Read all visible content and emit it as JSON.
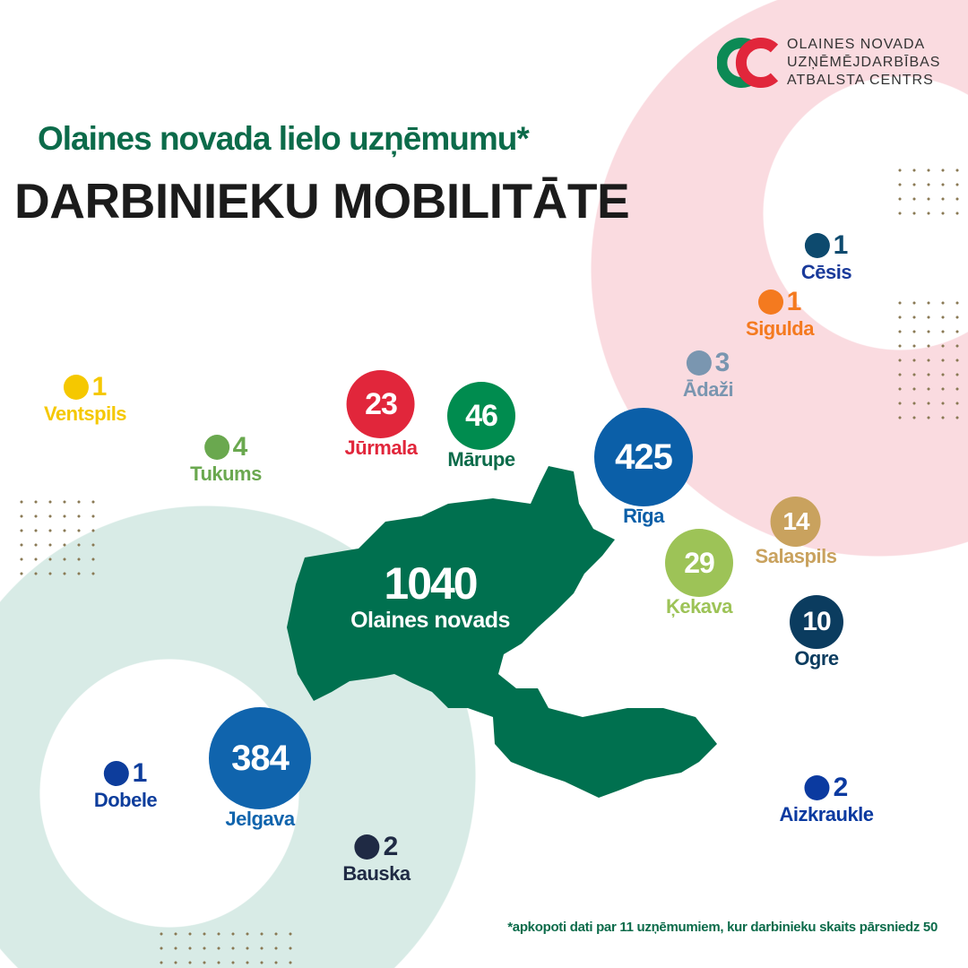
{
  "logo": {
    "lines": [
      "OLAINES NOVADA",
      "UZŅĒMĒJDARBĪBAS",
      "ATBALSTA CENTRS"
    ],
    "colors": {
      "green": "#0c8a55",
      "red": "#e1263b"
    }
  },
  "title": {
    "subtitle": "Olaines novada lielo uzņēmumu*",
    "main": "DARBINIEKU MOBILITĀTE"
  },
  "center": {
    "value": "1040",
    "name": "Olaines novads",
    "color": "#00704f"
  },
  "locations": [
    {
      "name": "Cēsis",
      "value": "1",
      "color": "#0d4a6e",
      "text": "#1a3a9a"
    },
    {
      "name": "Sigulda",
      "value": "1",
      "color": "#f47a1f",
      "text": "#f47a1f"
    },
    {
      "name": "Ādaži",
      "value": "3",
      "color": "#7a96b0",
      "text": "#7a96b0"
    },
    {
      "name": "Ventspils",
      "value": "1",
      "color": "#f5c800",
      "text": "#f5c800"
    },
    {
      "name": "Tukums",
      "value": "4",
      "color": "#6aa84f",
      "text": "#6aa84f"
    },
    {
      "name": "Jūrmala",
      "value": "23",
      "color": "#e1263b",
      "text": "#e1263b"
    },
    {
      "name": "Mārupe",
      "value": "46",
      "color": "#008c4f",
      "text": "#0c6b4a"
    },
    {
      "name": "Rīga",
      "value": "425",
      "color": "#0b5fa8",
      "text": "#0b5fa8"
    },
    {
      "name": "Salaspils",
      "value": "14",
      "color": "#c9a25e",
      "text": "#c9a25e"
    },
    {
      "name": "Ķekava",
      "value": "29",
      "color": "#9dc357",
      "text": "#9dc357"
    },
    {
      "name": "Ogre",
      "value": "10",
      "color": "#0b3c5f",
      "text": "#0b3c5f"
    },
    {
      "name": "Jelgava",
      "value": "384",
      "color": "#1064ad",
      "text": "#1064ad"
    },
    {
      "name": "Dobele",
      "value": "1",
      "color": "#0d3d9c",
      "text": "#0d3d9c"
    },
    {
      "name": "Bauska",
      "value": "2",
      "color": "#1f2a44",
      "text": "#1f2a44"
    },
    {
      "name": "Aizkraukle",
      "value": "2",
      "color": "#0b3aa0",
      "text": "#0b3aa0"
    }
  ],
  "footnote": "*apkopoti dati par 11 uzņēmumiem, kur darbinieku skaits pārsniedz 50"
}
